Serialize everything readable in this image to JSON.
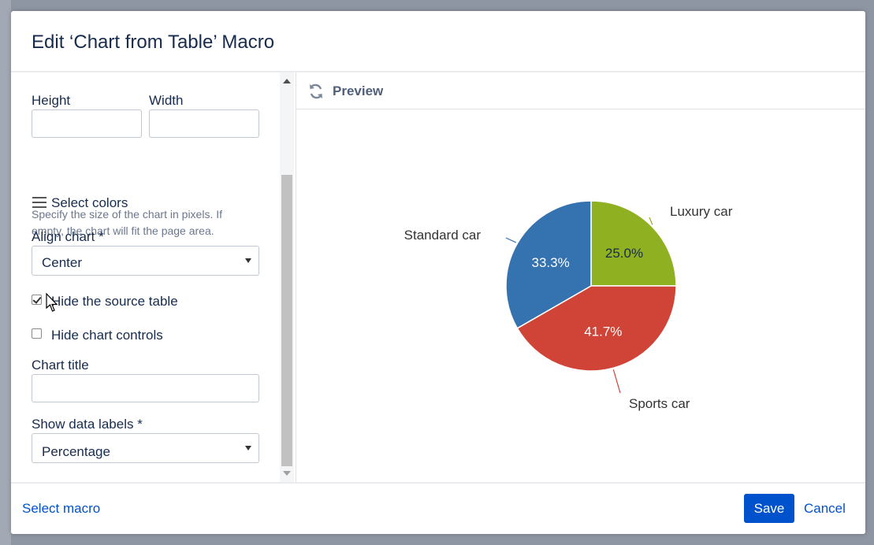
{
  "dialog": {
    "title": "Edit ‘Chart from Table’ Macro"
  },
  "form": {
    "height_label": "Height",
    "width_label": "Width",
    "height_value": "",
    "width_value": "",
    "size_help": "Specify the size of the chart in pixels. If empty, the chart will fit the page area.",
    "select_colors_label": "Select colors",
    "align_label": "Align chart *",
    "align_value": "Center",
    "hide_table_label": "Hide the source table",
    "hide_table_checked": true,
    "hide_controls_label": "Hide chart controls",
    "hide_controls_checked": false,
    "chart_title_label": "Chart title",
    "chart_title_value": "",
    "data_labels_label": "Show data labels *",
    "data_labels_value": "Percentage"
  },
  "preview": {
    "title": "Preview"
  },
  "footer": {
    "select_macro_label": "Select macro",
    "save_label": "Save",
    "cancel_label": "Cancel"
  },
  "chart_data": {
    "type": "pie",
    "title": "",
    "slices": [
      {
        "label": "Luxury car",
        "value": 25.0,
        "display": "25.0%",
        "color": "#8fb021",
        "label_color": "#172b4d"
      },
      {
        "label": "Sports car",
        "value": 41.7,
        "display": "41.7%",
        "color": "#d04437",
        "label_color": "#ffffff"
      },
      {
        "label": "Standard car",
        "value": 33.3,
        "display": "33.3%",
        "color": "#3572b0",
        "label_color": "#ffffff"
      }
    ],
    "start": "top, clockwise"
  },
  "colors": {
    "primary": "#0052cc",
    "text": "#172b4d"
  },
  "icons": {
    "refresh": "refresh-icon",
    "menu": "hamburger-icon",
    "cursor": "mouse-pointer-icon"
  }
}
